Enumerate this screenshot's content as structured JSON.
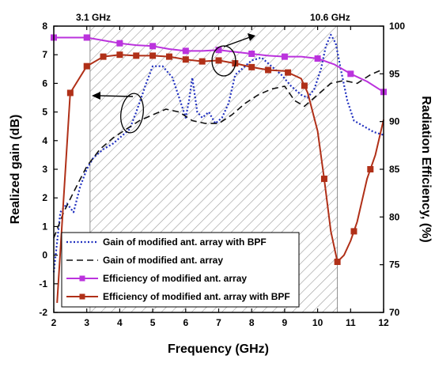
{
  "chart_data": {
    "type": "line",
    "xlabel": "Frequency (GHz)",
    "ylabel_left": "Realized gain (dB)",
    "ylabel_right": "Radiation Efficiency, (%)",
    "xlim": [
      2,
      12
    ],
    "ylim_left": [
      -2,
      8
    ],
    "ylim_right": [
      70,
      100
    ],
    "xticks": [
      "2",
      "3",
      "4",
      "5",
      "6",
      "7",
      "8",
      "9",
      "10",
      "11",
      "12"
    ],
    "yticks_left": [
      "-2",
      "-1",
      "0",
      "1",
      "2",
      "3",
      "4",
      "5",
      "6",
      "7",
      "8"
    ],
    "yticks_right": [
      "70",
      "75",
      "80",
      "85",
      "90",
      "95",
      "100"
    ],
    "band": {
      "start": 3.1,
      "end": 10.6,
      "start_label": "3.1 GHz",
      "end_label": "10.6 GHz",
      "pattern": "hatched"
    },
    "legend_position": "bottom-left",
    "series": [
      {
        "name": "Gain of modified ant. array with BPF",
        "axis": "left",
        "style": "dotted",
        "color": "#1f2fbf",
        "x": [
          2.0,
          2.2,
          2.4,
          2.6,
          2.8,
          3.0,
          3.2,
          3.5,
          3.8,
          4.0,
          4.3,
          4.5,
          4.8,
          5.0,
          5.3,
          5.6,
          5.8,
          6.0,
          6.1,
          6.2,
          6.35,
          6.5,
          6.7,
          6.9,
          7.1,
          7.3,
          7.5,
          7.8,
          8.0,
          8.3,
          8.6,
          8.9,
          9.2,
          9.5,
          9.7,
          9.9,
          10.1,
          10.25,
          10.4,
          10.55,
          10.7,
          10.9,
          11.1,
          11.4,
          11.7,
          12.0
        ],
        "values": [
          -0.6,
          1.5,
          1.8,
          1.5,
          2.4,
          3.0,
          3.4,
          3.7,
          3.9,
          4.1,
          4.4,
          5.0,
          6.0,
          6.6,
          6.6,
          6.2,
          5.5,
          4.8,
          5.4,
          6.2,
          5.0,
          4.8,
          5.0,
          4.6,
          4.8,
          5.3,
          6.3,
          6.6,
          6.8,
          6.9,
          6.6,
          6.3,
          5.9,
          5.6,
          5.5,
          5.8,
          6.5,
          7.3,
          7.7,
          7.4,
          6.5,
          5.4,
          4.7,
          4.5,
          4.3,
          4.2
        ]
      },
      {
        "name": "Gain of modified ant. array",
        "axis": "left",
        "style": "dashed",
        "color": "#111111",
        "x": [
          2.0,
          2.3,
          2.6,
          3.0,
          3.4,
          3.8,
          4.2,
          4.6,
          5.0,
          5.4,
          5.8,
          6.2,
          6.6,
          7.0,
          7.4,
          7.8,
          8.2,
          8.6,
          9.0,
          9.3,
          9.6,
          10.0,
          10.4,
          10.8,
          11.2,
          11.6,
          12.0
        ],
        "values": [
          0.6,
          1.5,
          2.2,
          3.1,
          3.7,
          4.1,
          4.4,
          4.7,
          4.9,
          5.1,
          5.0,
          4.7,
          4.6,
          4.6,
          4.9,
          5.3,
          5.6,
          5.8,
          5.9,
          5.4,
          5.2,
          5.6,
          6.0,
          6.1,
          6.0,
          6.3,
          6.5
        ]
      },
      {
        "name": "Efficiency of modified ant. array",
        "axis": "right",
        "style": "solid-square",
        "color": "#bb33dd",
        "x": [
          2.0,
          2.5,
          3.0,
          3.5,
          4.0,
          4.5,
          5.0,
          5.5,
          6.0,
          6.5,
          7.0,
          7.5,
          8.0,
          8.5,
          9.0,
          9.5,
          10.0,
          10.5,
          11.0,
          11.5,
          12.0
        ],
        "values": [
          98.8,
          98.8,
          98.8,
          98.5,
          98.2,
          98.0,
          97.9,
          97.6,
          97.4,
          97.4,
          97.5,
          97.3,
          97.1,
          96.9,
          96.8,
          96.8,
          96.6,
          96.0,
          95.0,
          94.2,
          93.1
        ]
      },
      {
        "name": "Efficiency of modified ant. array with BPF",
        "axis": "right",
        "style": "solid-square",
        "color": "#b03018",
        "x": [
          2.1,
          2.5,
          3.0,
          3.5,
          4.0,
          4.5,
          5.0,
          5.5,
          6.0,
          6.5,
          7.0,
          7.5,
          8.0,
          8.5,
          9.0,
          9.5,
          9.7,
          10.0,
          10.2,
          10.4,
          10.6,
          10.8,
          11.0,
          11.2,
          11.5,
          11.75,
          12.0
        ],
        "values": [
          71.0,
          93.0,
          95.8,
          96.8,
          97.0,
          96.9,
          96.9,
          96.8,
          96.5,
          96.3,
          96.4,
          96.1,
          95.7,
          95.4,
          95.3,
          94.5,
          93.0,
          89.0,
          84.0,
          78.5,
          75.3,
          76.0,
          77.5,
          79.5,
          84.0,
          86.5,
          90.2
        ]
      }
    ],
    "markers": {
      "Efficiency of modified ant. array": [
        2.0,
        3.0,
        4.0,
        5.0,
        6.0,
        7.0,
        8.0,
        9.0,
        10.0,
        11.0,
        12.0
      ],
      "Efficiency of modified ant. array with BPF": [
        2.5,
        3.0,
        3.5,
        4.0,
        4.5,
        5.0,
        5.5,
        6.0,
        6.5,
        7.0,
        7.5,
        8.0,
        8.5,
        9.1,
        9.6,
        10.2,
        10.6,
        11.1,
        11.6
      ]
    }
  }
}
